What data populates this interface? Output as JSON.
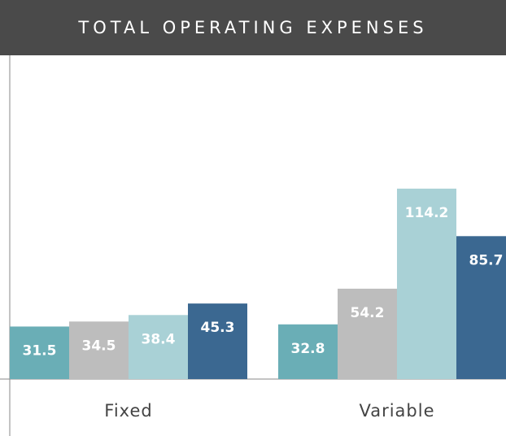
{
  "chart_data": {
    "type": "bar",
    "title": "TOTAL OPERATING EXPENSES",
    "categories": [
      "Fixed",
      "Variable"
    ],
    "series": [
      {
        "color": "#6aaeb6",
        "values": [
          31.5,
          32.8
        ]
      },
      {
        "color": "#bdbdbd",
        "values": [
          34.5,
          54.2
        ]
      },
      {
        "color": "#a9d1d6",
        "values": [
          38.4,
          114.2
        ]
      },
      {
        "color": "#3b6891",
        "values": [
          45.3,
          85.7
        ]
      }
    ]
  }
}
